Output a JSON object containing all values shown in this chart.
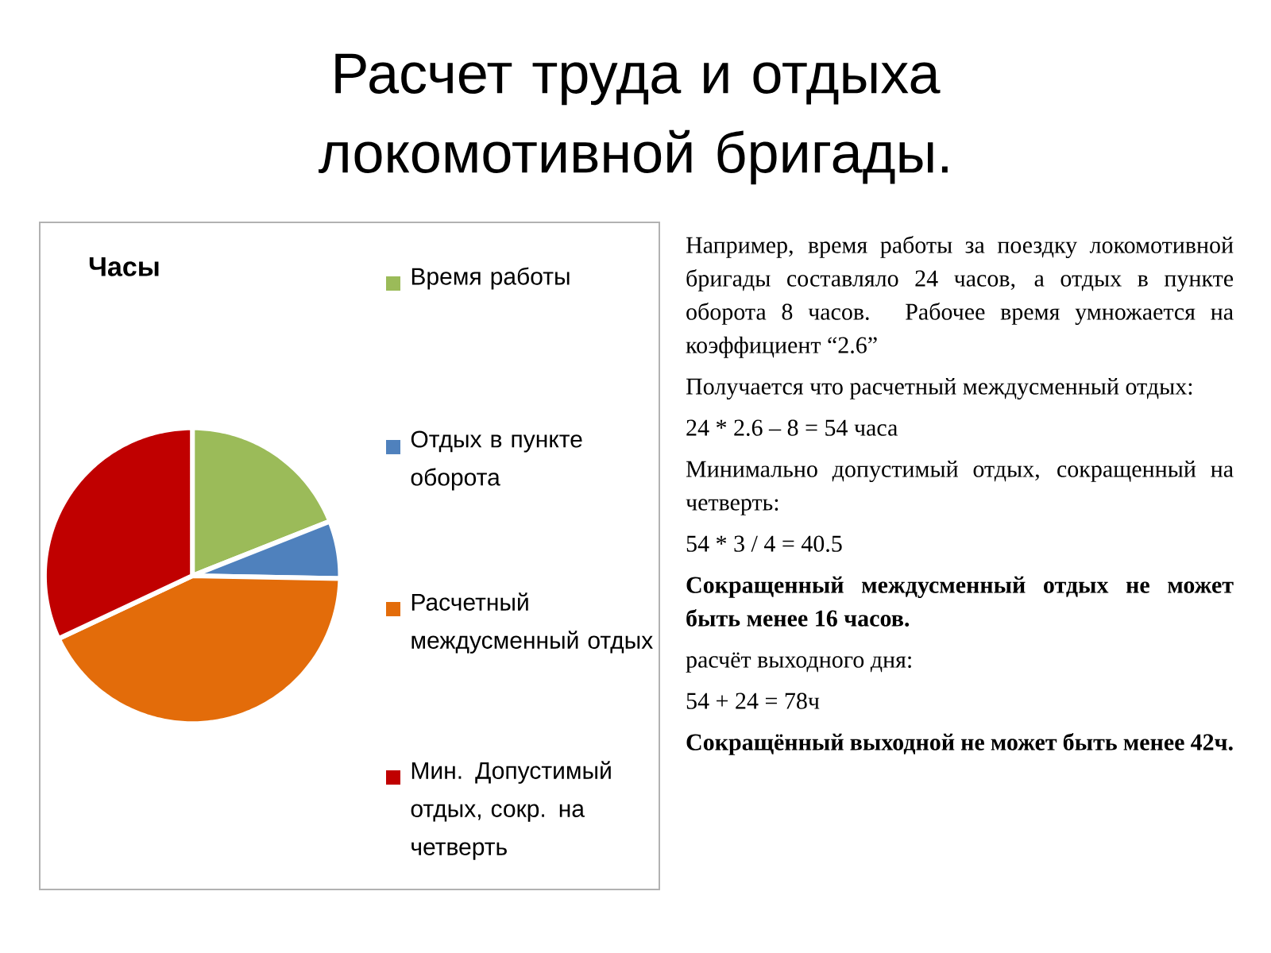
{
  "chart_data": {
    "type": "pie",
    "title": "Расчет труда и отдыха локомотивной бригады.",
    "subtitle": "Часы",
    "categories": [
      "Время работы",
      "Отдых в пункте оборота",
      "Расчетный междусменный отдых",
      "Мин. Допустимый отдых, сокр. на четверть"
    ],
    "values": [
      19.0,
      6.3,
      42.7,
      32.0
    ],
    "colors": [
      "#9bbb59",
      "#4f81bd",
      "#e36c0a",
      "#c00000"
    ],
    "legend": "right",
    "annotations": [
      "Например, время работы за поездку локомотивной бригады составляло 24 часов, а отдых в пункте оборота 8 часов. Рабочее время умножается на коэффициент “2.6”",
      "Получается что расчетный междусменный отдых:",
      "24 * 2.6 – 8 = 54 часа",
      "Минимально допустимый отдых, сокращенный на четверть:",
      "54 * 3 / 4 = 40.5",
      "**Сокращенный междусменный отдых не может быть менее 16 часов.**",
      "расчёт выходного дня:",
      "54 + 24 = 78ч",
      "**Сокращённый выходной не может быть менее 42ч.**"
    ]
  }
}
